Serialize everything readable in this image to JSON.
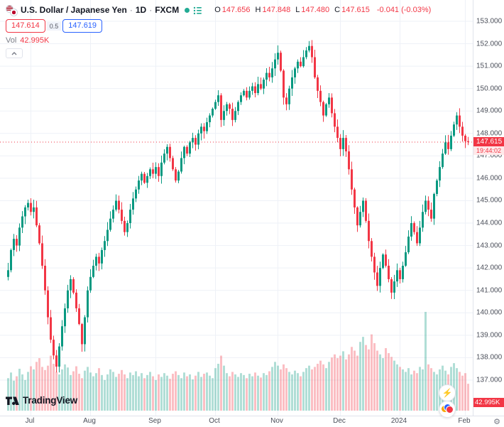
{
  "header": {
    "symbol_title": "U.S. Dollar / Japanese Yen",
    "separator": "·",
    "interval": "1D",
    "exchange": "FXCM",
    "ohlc": {
      "o_label": "O",
      "o": "147.656",
      "h_label": "H",
      "h": "147.848",
      "l_label": "L",
      "l": "147.480",
      "c_label": "C",
      "c": "147.615",
      "change": "-0.041 (-0.03%)"
    },
    "sell_price": "147.614",
    "spread": "0.5",
    "buy_price": "147.619",
    "vol_label": "Vol",
    "vol_value": "42.995K"
  },
  "price_scale": {
    "ticks": [
      "153.000",
      "152.000",
      "151.000",
      "150.000",
      "149.000",
      "148.000",
      "147.000",
      "146.000",
      "145.000",
      "144.000",
      "143.000",
      "142.000",
      "141.000",
      "140.000",
      "139.000",
      "138.000",
      "137.000"
    ],
    "last_price_label": "147.615",
    "countdown": "19:44:02",
    "volume_label": "42.995K"
  },
  "time_scale": {
    "ticks": [
      {
        "label": "Jul",
        "index": 8
      },
      {
        "label": "Aug",
        "index": 29
      },
      {
        "label": "Sep",
        "index": 52
      },
      {
        "label": "Oct",
        "index": 73
      },
      {
        "label": "Nov",
        "index": 95
      },
      {
        "label": "Dec",
        "index": 117
      },
      {
        "label": "2024",
        "index": 138
      },
      {
        "label": "Feb",
        "index": 161
      }
    ]
  },
  "footer": {
    "logo_text": "TradingView"
  },
  "colors": {
    "up": "#089981",
    "down": "#f23645",
    "up_vol": "rgba(8,153,129,0.32)",
    "down_vol": "rgba(242,54,69,0.32)",
    "accent_blue": "#2962ff",
    "grid": "#eef1f7",
    "axis_text": "#4a4e59"
  },
  "chart_data": {
    "type": "candlestick",
    "title": "U.S. Dollar / Japanese Yen, 1D, FXCM",
    "interval": "1D",
    "y_axis_range": [
      136.0,
      153.2
    ],
    "x_axis_months": [
      "Jul",
      "Aug",
      "Sep",
      "Oct",
      "Nov",
      "Dec",
      "2024",
      "Feb"
    ],
    "legend_position": "top-left",
    "grid": true,
    "last_candle": {
      "open": 147.656,
      "high": 147.848,
      "low": 147.48,
      "close": 147.615,
      "change": -0.041,
      "change_pct": -0.03
    },
    "volume_last_k": 42.995,
    "closes": [
      141.9,
      142.8,
      143.3,
      143.0,
      143.8,
      144.3,
      144.7,
      144.9,
      144.5,
      144.7,
      143.9,
      143.1,
      142.1,
      141.0,
      139.8,
      138.8,
      138.1,
      137.6,
      138.5,
      139.4,
      140.2,
      141.0,
      141.5,
      140.9,
      140.2,
      139.5,
      138.6,
      139.8,
      141.0,
      141.6,
      142.1,
      142.5,
      142.2,
      142.8,
      143.2,
      143.7,
      144.2,
      144.6,
      145.0,
      144.6,
      144.1,
      143.6,
      144.0,
      144.6,
      145.1,
      145.5,
      145.9,
      146.2,
      145.8,
      146.1,
      146.4,
      146.2,
      146.5,
      146.1,
      146.7,
      147.1,
      147.4,
      146.9,
      146.4,
      145.9,
      146.3,
      146.9,
      147.4,
      147.1,
      147.6,
      147.8,
      147.5,
      148.0,
      148.3,
      148.1,
      148.5,
      148.8,
      149.1,
      149.4,
      149.7,
      148.6,
      149.0,
      149.3,
      149.1,
      148.6,
      149.0,
      149.4,
      149.7,
      149.9,
      149.6,
      149.9,
      150.1,
      149.8,
      150.2,
      150.0,
      150.4,
      150.7,
      150.5,
      150.9,
      151.3,
      151.6,
      150.8,
      149.6,
      149.3,
      150.0,
      150.5,
      150.9,
      151.2,
      151.0,
      151.4,
      151.7,
      151.9,
      151.4,
      150.5,
      149.9,
      149.4,
      148.8,
      149.3,
      149.6,
      148.9,
      148.3,
      147.8,
      147.3,
      147.8,
      147.2,
      146.4,
      145.5,
      144.7,
      143.9,
      144.5,
      145.0,
      144.1,
      143.2,
      142.5,
      141.8,
      141.2,
      142.0,
      142.6,
      142.1,
      141.5,
      140.9,
      141.4,
      141.9,
      141.5,
      142.1,
      142.7,
      143.4,
      144.0,
      143.6,
      143.1,
      143.8,
      144.5,
      145.0,
      144.6,
      144.2,
      145.3,
      145.9,
      146.5,
      147.1,
      147.6,
      147.3,
      147.9,
      148.4,
      148.8,
      148.3,
      147.9,
      147.656,
      147.615
    ],
    "volumes_k": [
      52,
      61,
      48,
      55,
      67,
      58,
      49,
      62,
      71,
      66,
      78,
      84,
      70,
      65,
      72,
      88,
      75,
      62,
      58,
      66,
      74,
      69,
      57,
      63,
      71,
      59,
      52,
      64,
      70,
      61,
      55,
      60,
      68,
      57,
      49,
      58,
      66,
      62,
      54,
      59,
      65,
      58,
      52,
      61,
      57,
      63,
      55,
      60,
      52,
      57,
      62,
      55,
      49,
      58,
      54,
      60,
      56,
      51,
      59,
      63,
      57,
      52,
      61,
      55,
      58,
      50,
      56,
      62,
      54,
      59,
      61,
      56,
      52,
      68,
      75,
      88,
      72,
      60,
      55,
      62,
      58,
      54,
      60,
      57,
      52,
      59,
      55,
      61,
      56,
      53,
      60,
      57,
      63,
      70,
      78,
      72,
      66,
      74,
      68,
      62,
      58,
      64,
      60,
      55,
      62,
      68,
      72,
      66,
      70,
      75,
      80,
      74,
      68,
      78,
      85,
      90,
      84,
      88,
      95,
      82,
      90,
      102,
      96,
      88,
      110,
      118,
      105,
      98,
      122,
      108,
      96,
      90,
      84,
      100,
      92,
      86,
      80,
      74,
      70,
      66,
      62,
      68,
      58,
      64,
      60,
      70,
      66,
      158,
      74,
      68,
      62,
      58,
      66,
      72,
      64,
      58,
      70,
      76,
      68,
      62,
      56,
      60,
      43
    ]
  }
}
